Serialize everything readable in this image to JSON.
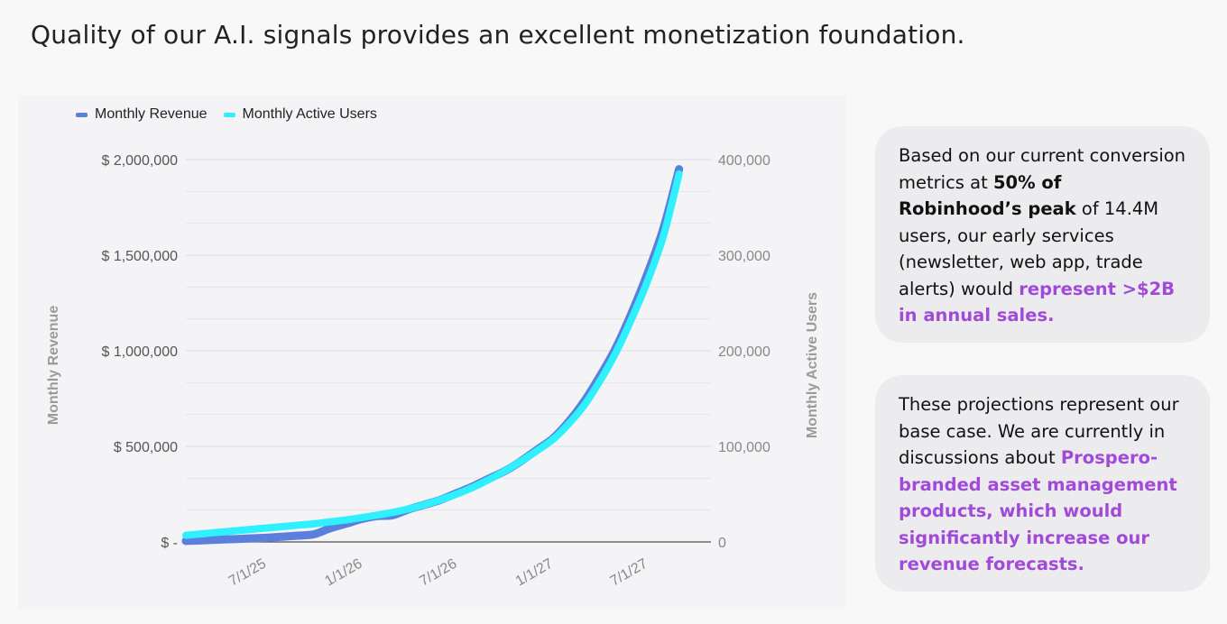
{
  "slide": {
    "title": "Quality of our A.I. signals provides an excellent monetization foundation."
  },
  "colors": {
    "revenue": "#5a7fdc",
    "users": "#2ef0ff",
    "accent": "#a24ad8",
    "axis_text": "#555555",
    "axis_title": "#9a9a9a",
    "grid": "#dcdce0"
  },
  "chart_data": {
    "type": "line",
    "legend_position": "top-left",
    "grid": true,
    "y_axis_left": {
      "label": "Monthly Revenue",
      "range": [
        0,
        2000000
      ],
      "ticks": [
        {
          "value": 0,
          "label": "$ -"
        },
        {
          "value": 500000,
          "label": "$ 500,000"
        },
        {
          "value": 1000000,
          "label": "$ 1,000,000"
        },
        {
          "value": 1500000,
          "label": "$ 1,500,000"
        },
        {
          "value": 2000000,
          "label": "$ 2,000,000"
        }
      ]
    },
    "y_axis_right": {
      "label": "Monthly Active Users",
      "range": [
        0,
        400000
      ],
      "ticks": [
        {
          "value": 0,
          "label": "0"
        },
        {
          "value": 100000,
          "label": "100,000"
        },
        {
          "value": 200000,
          "label": "200,000"
        },
        {
          "value": 300000,
          "label": "300,000"
        },
        {
          "value": 400000,
          "label": "400,000"
        }
      ]
    },
    "x_axis": {
      "range": [
        "2025-03-01",
        "2027-12-01"
      ],
      "ticks": [
        {
          "value": "2025-07-01",
          "label": "7/1/25"
        },
        {
          "value": "2026-01-01",
          "label": "1/1/26"
        },
        {
          "value": "2026-07-01",
          "label": "7/1/26"
        },
        {
          "value": "2027-01-01",
          "label": "1/1/27"
        },
        {
          "value": "2027-07-01",
          "label": "7/1/27"
        }
      ]
    },
    "series": [
      {
        "name": "Monthly Revenue",
        "axis": "left",
        "color": "#5a7fdc",
        "points": [
          [
            "2025-03-01",
            5000
          ],
          [
            "2025-04-01",
            8000
          ],
          [
            "2025-05-01",
            12000
          ],
          [
            "2025-06-01",
            15000
          ],
          [
            "2025-07-01",
            18000
          ],
          [
            "2025-08-01",
            22000
          ],
          [
            "2025-09-01",
            27000
          ],
          [
            "2025-10-01",
            33000
          ],
          [
            "2025-11-01",
            40000
          ],
          [
            "2025-12-01",
            70000
          ],
          [
            "2026-01-01",
            95000
          ],
          [
            "2026-02-01",
            120000
          ],
          [
            "2026-03-01",
            135000
          ],
          [
            "2026-04-01",
            140000
          ],
          [
            "2026-05-01",
            170000
          ],
          [
            "2026-06-01",
            195000
          ],
          [
            "2026-07-01",
            220000
          ],
          [
            "2026-08-01",
            255000
          ],
          [
            "2026-09-01",
            290000
          ],
          [
            "2026-10-01",
            330000
          ],
          [
            "2026-11-01",
            370000
          ],
          [
            "2026-12-01",
            420000
          ],
          [
            "2027-01-01",
            480000
          ],
          [
            "2027-02-01",
            540000
          ],
          [
            "2027-03-01",
            620000
          ],
          [
            "2027-04-01",
            730000
          ],
          [
            "2027-05-01",
            860000
          ],
          [
            "2027-06-01",
            1010000
          ],
          [
            "2027-07-01",
            1190000
          ],
          [
            "2027-08-01",
            1400000
          ],
          [
            "2027-09-01",
            1640000
          ],
          [
            "2027-10-01",
            1950000
          ]
        ]
      },
      {
        "name": "Monthly Active Users",
        "axis": "right",
        "color": "#2ef0ff",
        "points": [
          [
            "2025-03-01",
            7000
          ],
          [
            "2025-04-01",
            8500
          ],
          [
            "2025-05-01",
            10000
          ],
          [
            "2025-06-01",
            11500
          ],
          [
            "2025-07-01",
            13000
          ],
          [
            "2025-08-01",
            14500
          ],
          [
            "2025-09-01",
            16000
          ],
          [
            "2025-10-01",
            17500
          ],
          [
            "2025-11-01",
            19000
          ],
          [
            "2025-12-01",
            21000
          ],
          [
            "2026-01-01",
            23000
          ],
          [
            "2026-02-01",
            25500
          ],
          [
            "2026-03-01",
            28000
          ],
          [
            "2026-04-01",
            31000
          ],
          [
            "2026-05-01",
            34500
          ],
          [
            "2026-06-01",
            39000
          ],
          [
            "2026-07-01",
            44000
          ],
          [
            "2026-08-01",
            50000
          ],
          [
            "2026-09-01",
            57000
          ],
          [
            "2026-10-01",
            65000
          ],
          [
            "2026-11-01",
            74000
          ],
          [
            "2026-12-01",
            84000
          ],
          [
            "2027-01-01",
            95000
          ],
          [
            "2027-02-01",
            107000
          ],
          [
            "2027-03-01",
            122000
          ],
          [
            "2027-04-01",
            142000
          ],
          [
            "2027-05-01",
            167000
          ],
          [
            "2027-06-01",
            197000
          ],
          [
            "2027-07-01",
            232000
          ],
          [
            "2027-08-01",
            272000
          ],
          [
            "2027-09-01",
            320000
          ],
          [
            "2027-10-01",
            385000
          ]
        ]
      }
    ]
  },
  "cards": [
    {
      "segments": [
        {
          "text": "Based on our current conversion metrics at ",
          "style": "normal"
        },
        {
          "text": "50% of Robinhood’s peak",
          "style": "bold"
        },
        {
          "text": " of 14.4M users, our early services (newsletter, web app, trade alerts) would ",
          "style": "normal"
        },
        {
          "text": "represent >$2B in annual sales.",
          "style": "accent"
        }
      ]
    },
    {
      "segments": [
        {
          "text": "These projections represent our base case. We are currently in discussions about ",
          "style": "normal"
        },
        {
          "text": "Prospero-branded asset management products, which would significantly increase our revenue forecasts.",
          "style": "accent"
        }
      ]
    }
  ]
}
